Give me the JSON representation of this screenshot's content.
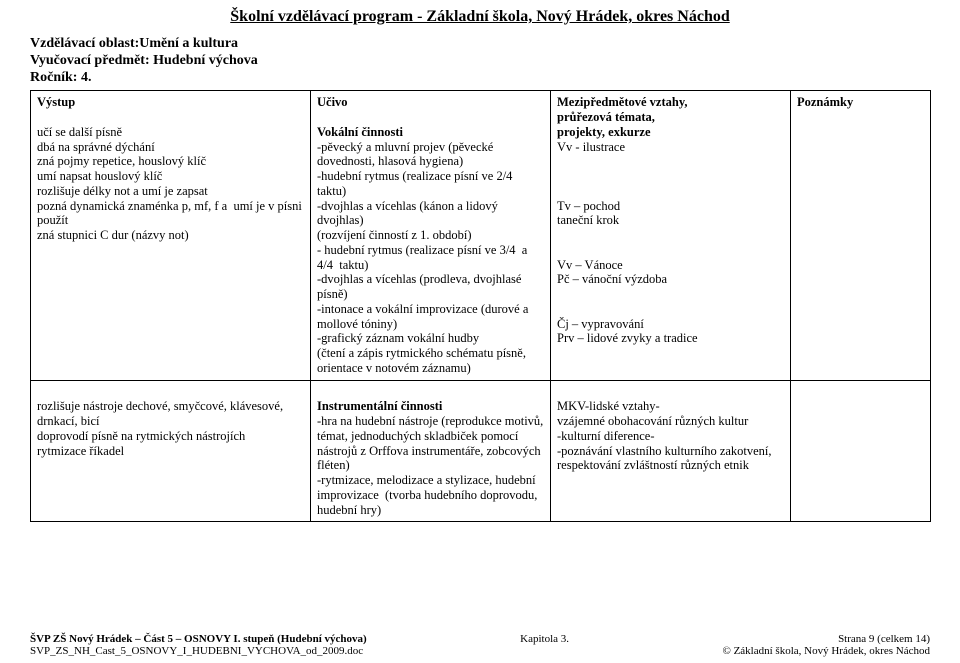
{
  "page_title": "Školní vzdělávací program  -  Základní škola, Nový Hrádek, okres Náchod",
  "intro": {
    "line1": "Vzdělávací oblast:Umění a kultura",
    "line2": "Vyučovací předmět: Hudební výchova",
    "line3": "Ročník: 4."
  },
  "table": {
    "row1": {
      "c1_head": "Výstup",
      "c1_body": "učí se další písně\ndbá na správné dýchání\nzná pojmy repetice, houslový klíč\numí napsat houslový klíč\nrozlišuje délky not a umí je zapsat\npozná dynamická znaménka p, mf, f a  umí je v písni použít\nzná stupnici C dur (názvy not)",
      "c2_head": "Učivo",
      "c2_body_head": "Vokální činnosti",
      "c2_body": "-pěvecký a mluvní projev (pěvecké dovednosti, hlasová hygiena)\n-hudební rytmus (realizace písní ve 2/4 taktu)\n-dvojhlas a vícehlas (kánon a lidový dvojhlas)\n(rozvíjení činností z 1. období)\n- hudební rytmus (realizace písní ve 3/4  a 4/4  taktu)\n-dvojhlas a vícehlas (prodleva, dvojhlasé písně)\n-intonace a vokální improvizace (durové a mollové tóniny)\n-grafický záznam vokální hudby\n(čtení a zápis rytmického schématu písně, orientace v notovém záznamu)",
      "c3_head": "Mezipředmětové vztahy,\nprůřezová témata,\nprojekty, exkurze",
      "c3_body": "Vv - ilustrace\n\n\n\nTv – pochod\ntaneční krok\n\n\nVv – Vánoce\nPč – vánoční výzdoba\n\n\nČj – vypravování\nPrv – lidové zvyky a tradice",
      "c4_head": "Poznámky",
      "c4_body": ""
    },
    "row2": {
      "c1": "rozlišuje nástroje dechové, smyčcové, klávesové, drnkací, bicí\ndoprovodí písně na rytmických nástrojích\nrytmizace říkadel",
      "c2_head": "Instrumentální činnosti",
      "c2_body": "-hra na hudební nástroje (reprodukce motivů, témat, jednoduchých skladbiček pomocí nástrojů z Orffova instrumentáře, zobcových\nfléten)\n-rytmizace, melodizace a stylizace, hudební improvizace  (tvorba hudebního doprovodu, hudební hry)",
      "c3": "\nMKV-lidské vztahy-\nvzájemné obohacování různých kultur\n-kulturní diference-\n-poznávání vlastního kulturního zakotvení, respektování zvláštností různých etnik",
      "c4": ""
    }
  },
  "footer": {
    "left1": "ŠVP ZŠ Nový Hrádek – Část 5 – OSNOVY I. stupeň (Hudební výchova)",
    "left2": "SVP_ZS_NH_Cast_5_OSNOVY_I_HUDEBNI_VYCHOVA_od_2009.doc",
    "center": "Kapitola 3.",
    "right1": "Strana 9 (celkem 14)",
    "right2": "© Základní škola, Nový Hrádek, okres Náchod"
  }
}
